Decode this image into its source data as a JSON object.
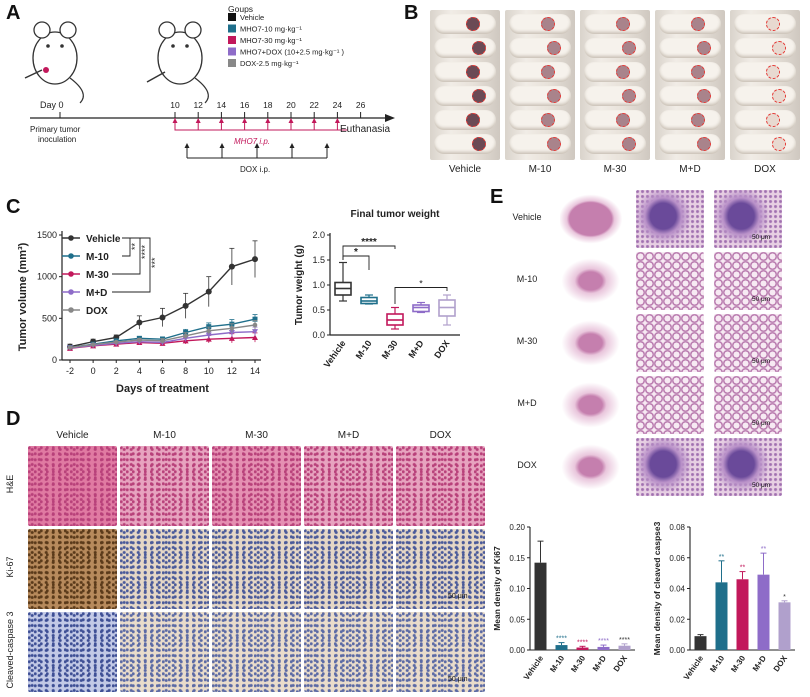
{
  "panel_labels": [
    "A",
    "B",
    "C",
    "D",
    "E"
  ],
  "panelA": {
    "legend_title": "Goups",
    "groups": [
      {
        "label": "Vehicle",
        "color": "#111111"
      },
      {
        "label": "MHO7-10 mg·kg⁻¹",
        "color": "#1f6f8b"
      },
      {
        "label": "MHO7-30 mg·kg⁻¹",
        "color": "#c2185b"
      },
      {
        "label": "MHO7+DOX (10+2.5 mg·kg⁻¹ )",
        "color": "#8e6cc8"
      },
      {
        "label": "DOX-2.5 mg·kg⁻¹",
        "color": "#888888"
      }
    ],
    "day0": "Day 0",
    "days": [
      "10",
      "12",
      "14",
      "16",
      "18",
      "20",
      "22",
      "24",
      "26"
    ],
    "primary": "Primary tumor",
    "inoculation": "inoculation",
    "euthanasia": "Euthanasia",
    "mho7_ip": "MHO7 i.p.",
    "dox_ip": "DOX i.p."
  },
  "panelB": {
    "groups": [
      "Vehicle",
      "M-10",
      "M-30",
      "M+D",
      "DOX"
    ]
  },
  "chart_data": [
    {
      "type": "line",
      "xlabel": "Days of treatment",
      "ylabel": "Tumor volume (mm³)",
      "x": [
        -2,
        0,
        2,
        4,
        6,
        8,
        10,
        12,
        14
      ],
      "xticks": [
        "-2",
        "0",
        "2",
        "4",
        "6",
        "8",
        "10",
        "12",
        "14"
      ],
      "yticks": [
        "0",
        "500",
        "1000",
        "1500"
      ],
      "ylim": [
        0,
        1500
      ],
      "series": [
        {
          "name": "Vehicle",
          "color": "#333333",
          "values": [
            160,
            220,
            270,
            450,
            510,
            650,
            820,
            1120,
            1210
          ]
        },
        {
          "name": "M-10",
          "color": "#1f6f8b",
          "values": [
            150,
            190,
            230,
            260,
            250,
            330,
            400,
            430,
            490
          ]
        },
        {
          "name": "M-30",
          "color": "#c2185b",
          "values": [
            140,
            170,
            190,
            210,
            200,
            230,
            250,
            260,
            270
          ]
        },
        {
          "name": "M+D",
          "color": "#8e6cc8",
          "values": [
            145,
            175,
            200,
            220,
            210,
            260,
            300,
            330,
            340
          ]
        },
        {
          "name": "DOX",
          "color": "#888888",
          "values": [
            150,
            185,
            215,
            240,
            230,
            290,
            350,
            380,
            420
          ]
        }
      ],
      "significance": [
        "**",
        "****",
        "***"
      ]
    },
    {
      "type": "box",
      "title": "Final tumor weight",
      "ylabel": "Tumor weight (g)",
      "categories": [
        "Vehicle",
        "M-10",
        "M-30",
        "M+D",
        "DOX"
      ],
      "colors": [
        "#333333",
        "#1f6f8b",
        "#c2185b",
        "#8e6cc8",
        "#b0a0cc"
      ],
      "yticks": [
        "0.0",
        "0.5",
        "1.0",
        "1.5",
        "2.0"
      ],
      "ylim": [
        0,
        2.0
      ],
      "boxes": [
        {
          "min": 0.68,
          "q1": 0.8,
          "median": 0.93,
          "q3": 1.05,
          "max": 1.45
        },
        {
          "min": 0.62,
          "q1": 0.63,
          "median": 0.68,
          "q3": 0.75,
          "max": 0.8
        },
        {
          "min": 0.12,
          "q1": 0.2,
          "median": 0.3,
          "q3": 0.42,
          "max": 0.55
        },
        {
          "min": 0.45,
          "q1": 0.47,
          "median": 0.55,
          "q3": 0.6,
          "max": 0.65
        },
        {
          "min": 0.2,
          "q1": 0.38,
          "median": 0.55,
          "q3": 0.7,
          "max": 0.8
        }
      ],
      "significance": [
        "****",
        "*",
        "*"
      ]
    },
    {
      "type": "bar",
      "ylabel": "Mean density of Ki67",
      "categories": [
        "Vehicle",
        "M-10",
        "M-30",
        "M+D",
        "DOX"
      ],
      "colors": [
        "#333333",
        "#1f6f8b",
        "#c2185b",
        "#8e6cc8",
        "#b0a0cc"
      ],
      "values": [
        0.142,
        0.008,
        0.004,
        0.005,
        0.007
      ],
      "errors": [
        0.035,
        0.004,
        0.002,
        0.003,
        0.003
      ],
      "yticks": [
        "0.00",
        "0.05",
        "0.10",
        "0.15",
        "0.20"
      ],
      "ylim": [
        0,
        0.2
      ],
      "significance": [
        "",
        "****",
        "****",
        "****",
        "****"
      ]
    },
    {
      "type": "bar",
      "ylabel": "Mean density of cleaved caspse3",
      "categories": [
        "Vehicle",
        "M-10",
        "M-30",
        "M+D",
        "DOX"
      ],
      "colors": [
        "#333333",
        "#1f6f8b",
        "#c2185b",
        "#8e6cc8",
        "#b0a0cc"
      ],
      "values": [
        0.009,
        0.044,
        0.046,
        0.049,
        0.031
      ],
      "errors": [
        0.001,
        0.014,
        0.005,
        0.014,
        0.001
      ],
      "yticks": [
        "0.00",
        "0.02",
        "0.04",
        "0.06",
        "0.08"
      ],
      "ylim": [
        0,
        0.08
      ],
      "significance": [
        "",
        "**",
        "**",
        "**",
        "*"
      ]
    }
  ],
  "panelD": {
    "columns": [
      "Vehicle",
      "M-10",
      "M-30",
      "M+D",
      "DOX"
    ],
    "rows": [
      "H&E",
      "Ki-67",
      "Cleaved-caspase 3"
    ],
    "scale": "50 μm"
  },
  "panelE": {
    "rows": [
      "Vehicle",
      "M-10",
      "M-30",
      "M+D",
      "DOX"
    ],
    "scale": "50 μm"
  }
}
